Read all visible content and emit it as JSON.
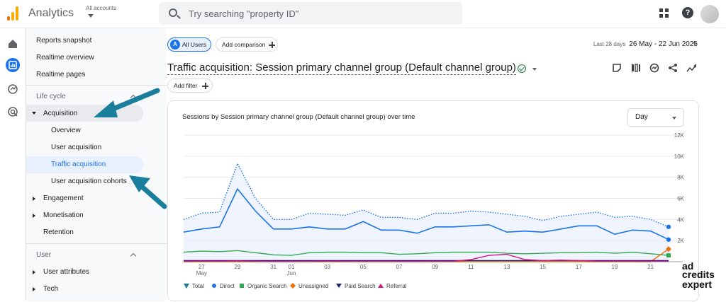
{
  "header": {
    "app_title": "Analytics",
    "account_label": "All accounts",
    "search_placeholder": "Try searching \"property ID\""
  },
  "sidebar": {
    "top_items": [
      "Reports snapshot",
      "Realtime overview",
      "Realtime pages"
    ],
    "lifecycle_label": "Life cycle",
    "acquisition_label": "Acquisition",
    "acquisition_children": [
      "Overview",
      "User acquisition",
      "Traffic acquisition",
      "User acquisition cohorts"
    ],
    "other_items": [
      "Engagement",
      "Monetisation",
      "Retention"
    ],
    "user_label": "User",
    "user_items": [
      "User attributes",
      "Tech"
    ]
  },
  "toolbar": {
    "segment_badge": "A",
    "segment_label": "All Users",
    "add_comparison": "Add comparison",
    "date_prefix": "Last 28 days",
    "date_range": "26 May - 22 Jun 2025",
    "report_title": "Traffic acquisition: Session primary channel group (Default channel group)",
    "add_filter": "Add filter"
  },
  "card": {
    "title": "Sessions by Session primary channel group (Default channel group) over time",
    "interval": "Day"
  },
  "chart_data": {
    "type": "area",
    "title": "Sessions by Session primary channel group (Default channel group) over time",
    "x": [
      "26 May",
      "27 May",
      "28 May",
      "29 May",
      "30 May",
      "31 May",
      "1 Jun",
      "2 Jun",
      "3 Jun",
      "4 Jun",
      "5 Jun",
      "6 Jun",
      "7 Jun",
      "8 Jun",
      "9 Jun",
      "10 Jun",
      "11 Jun",
      "12 Jun",
      "13 Jun",
      "14 Jun",
      "15 Jun",
      "16 Jun",
      "17 Jun",
      "18 Jun",
      "19 Jun",
      "20 Jun",
      "21 Jun",
      "22 Jun"
    ],
    "x_tick_labels": [
      {
        "i": 1,
        "label": "27",
        "sub": "May"
      },
      {
        "i": 3,
        "label": "29"
      },
      {
        "i": 5,
        "label": "31"
      },
      {
        "i": 6,
        "label": "01",
        "sub": "Jun"
      },
      {
        "i": 8,
        "label": "03"
      },
      {
        "i": 10,
        "label": "05"
      },
      {
        "i": 12,
        "label": "07"
      },
      {
        "i": 14,
        "label": "09"
      },
      {
        "i": 16,
        "label": "11"
      },
      {
        "i": 18,
        "label": "13"
      },
      {
        "i": 20,
        "label": "15"
      },
      {
        "i": 22,
        "label": "17"
      },
      {
        "i": 24,
        "label": "19"
      },
      {
        "i": 26,
        "label": "21"
      }
    ],
    "yticks": [
      "",
      "2K",
      "4K",
      "6K",
      "8K",
      "10K",
      "12K"
    ],
    "ylim": [
      0,
      12000
    ],
    "grid": true,
    "legend_position": "bottom",
    "series": [
      {
        "name": "Total",
        "color": "#1a73e8",
        "style": "dotted-area",
        "values": [
          4000,
          4600,
          4700,
          9300,
          6000,
          4000,
          4000,
          4600,
          4500,
          4400,
          4900,
          4200,
          4200,
          4000,
          4600,
          4600,
          4800,
          4700,
          4500,
          4300,
          3900,
          4300,
          4500,
          4700,
          4200,
          4300,
          4000,
          3300
        ]
      },
      {
        "name": "Direct",
        "color": "#1a73e8",
        "style": "line",
        "values": [
          2800,
          3100,
          3300,
          6900,
          4800,
          3100,
          3100,
          3300,
          3100,
          3100,
          3800,
          3000,
          3000,
          2700,
          3300,
          3300,
          3400,
          3500,
          2800,
          2900,
          2800,
          3100,
          3400,
          3400,
          2600,
          3000,
          2900,
          2100
        ]
      },
      {
        "name": "Organic Search",
        "color": "#34a853",
        "style": "line",
        "values": [
          900,
          1000,
          950,
          1050,
          850,
          650,
          600,
          850,
          900,
          900,
          850,
          850,
          700,
          750,
          850,
          900,
          900,
          900,
          800,
          750,
          800,
          850,
          850,
          900,
          800,
          900,
          750,
          600
        ]
      },
      {
        "name": "Unassigned",
        "color": "#e8710a",
        "style": "line",
        "values": [
          0,
          0,
          0,
          0,
          0,
          0,
          0,
          0,
          0,
          0,
          0,
          0,
          0,
          0,
          0,
          0,
          0,
          0,
          0,
          0,
          0,
          0,
          0,
          0,
          0,
          0,
          0,
          1200
        ]
      },
      {
        "name": "Paid Search",
        "color": "#1a237e",
        "style": "line",
        "values": [
          100,
          100,
          100,
          100,
          100,
          100,
          100,
          100,
          100,
          100,
          100,
          100,
          100,
          100,
          100,
          100,
          100,
          100,
          100,
          100,
          100,
          100,
          100,
          100,
          100,
          100,
          100,
          100
        ]
      },
      {
        "name": "Referral",
        "color": "#d01884",
        "style": "line",
        "values": [
          30,
          50,
          40,
          60,
          30,
          20,
          20,
          30,
          40,
          30,
          30,
          30,
          20,
          20,
          30,
          30,
          200,
          600,
          700,
          200,
          100,
          150,
          100,
          50,
          40,
          40,
          30,
          30
        ]
      }
    ]
  },
  "colors": {
    "accent": "#1a73e8",
    "selected_nav_bg": "#e8f0fe",
    "annotation_arrow": "#1a7f9c"
  },
  "watermark": {
    "line1": "ad",
    "line2": "credits",
    "line3": "expert"
  }
}
